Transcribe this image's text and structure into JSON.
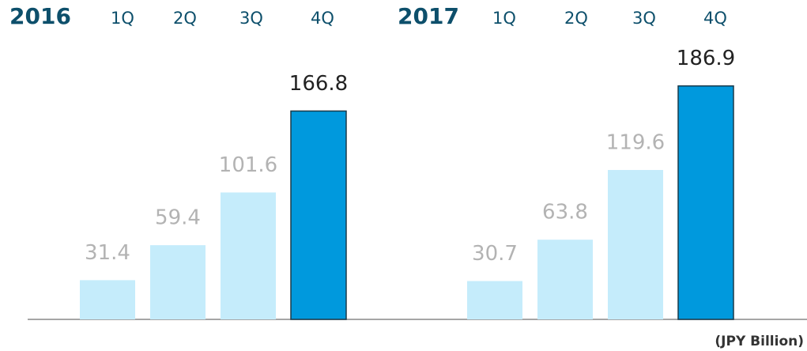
{
  "chart_data": [
    {
      "type": "bar",
      "title": "2016",
      "categories": [
        "1Q",
        "2Q",
        "3Q",
        "4Q"
      ],
      "values": [
        31.4,
        59.4,
        101.6,
        166.8
      ],
      "colors": [
        "#c5ecfb",
        "#c5ecfb",
        "#c5ecfb",
        "#0099dd"
      ],
      "label_colors": [
        "#b3b3b3",
        "#b3b3b3",
        "#b3b3b3",
        "#222222"
      ]
    },
    {
      "type": "bar",
      "title": "2017",
      "categories": [
        "1Q",
        "2Q",
        "3Q",
        "4Q"
      ],
      "values": [
        30.7,
        63.8,
        119.6,
        186.9
      ],
      "colors": [
        "#c5ecfb",
        "#c5ecfb",
        "#c5ecfb",
        "#0099dd"
      ],
      "label_colors": [
        "#b3b3b3",
        "#b3b3b3",
        "#b3b3b3",
        "#222222"
      ]
    }
  ],
  "unit_label": "(JPY Billion)"
}
